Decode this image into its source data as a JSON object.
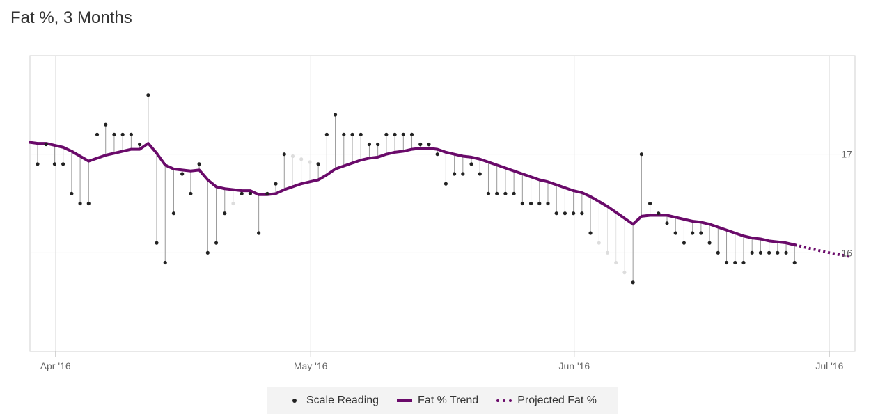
{
  "chart_data": {
    "type": "line",
    "title": "Fat %, 3 Months",
    "xlabel": "",
    "ylabel": "",
    "x_domain_days": [
      -3,
      94
    ],
    "ylim": [
      15.0,
      18.0
    ],
    "y_ticks": [
      16,
      17
    ],
    "x_ticks": [
      {
        "day": 0,
        "label": "Apr '16"
      },
      {
        "day": 30,
        "label": "May '16"
      },
      {
        "day": 61,
        "label": "Jun '16"
      },
      {
        "day": 91,
        "label": "Jul '16"
      }
    ],
    "legend": [
      "Scale Reading",
      "Fat % Trend",
      "Projected Fat %"
    ],
    "legend_position": "bottom-center",
    "colors": {
      "trend": "#6a0a6a",
      "dot": "#222222",
      "faded_dot": "#dddddd",
      "stem": "#999999",
      "faded_stem": "#e3e3e3",
      "grid": "#e6e6e6"
    },
    "readings": [
      {
        "day": -2.1,
        "value": 16.9
      },
      {
        "day": -1.1,
        "value": 17.1
      },
      {
        "day": -0.1,
        "value": 16.9
      },
      {
        "day": 0.9,
        "value": 16.9
      },
      {
        "day": 1.9,
        "value": 16.6
      },
      {
        "day": 2.9,
        "value": 16.5
      },
      {
        "day": 3.9,
        "value": 16.5
      },
      {
        "day": 4.9,
        "value": 17.2
      },
      {
        "day": 5.9,
        "value": 17.3
      },
      {
        "day": 6.9,
        "value": 17.2
      },
      {
        "day": 7.9,
        "value": 17.2
      },
      {
        "day": 8.9,
        "value": 17.2
      },
      {
        "day": 9.9,
        "value": 17.1
      },
      {
        "day": 10.9,
        "value": 17.6
      },
      {
        "day": 11.9,
        "value": 16.1
      },
      {
        "day": 12.9,
        "value": 15.9
      },
      {
        "day": 13.9,
        "value": 16.4
      },
      {
        "day": 14.9,
        "value": 16.8
      },
      {
        "day": 15.9,
        "value": 16.6
      },
      {
        "day": 16.9,
        "value": 16.9
      },
      {
        "day": 17.9,
        "value": 16.0
      },
      {
        "day": 18.9,
        "value": 16.1
      },
      {
        "day": 19.9,
        "value": 16.4
      },
      {
        "day": 20.9,
        "value": 16.5,
        "faded": true
      },
      {
        "day": 21.9,
        "value": 16.6
      },
      {
        "day": 22.9,
        "value": 16.6
      },
      {
        "day": 23.9,
        "value": 16.2
      },
      {
        "day": 24.9,
        "value": 16.6
      },
      {
        "day": 25.9,
        "value": 16.7
      },
      {
        "day": 26.9,
        "value": 17.0
      },
      {
        "day": 27.9,
        "value": 16.98,
        "faded": true
      },
      {
        "day": 28.9,
        "value": 16.95,
        "faded": true
      },
      {
        "day": 29.9,
        "value": 16.92,
        "faded": true
      },
      {
        "day": 30.9,
        "value": 16.9
      },
      {
        "day": 31.9,
        "value": 17.2
      },
      {
        "day": 32.9,
        "value": 17.4
      },
      {
        "day": 33.9,
        "value": 17.2
      },
      {
        "day": 34.9,
        "value": 17.2
      },
      {
        "day": 35.9,
        "value": 17.2
      },
      {
        "day": 36.9,
        "value": 17.1
      },
      {
        "day": 37.9,
        "value": 17.1
      },
      {
        "day": 38.9,
        "value": 17.2
      },
      {
        "day": 39.9,
        "value": 17.2
      },
      {
        "day": 40.9,
        "value": 17.2
      },
      {
        "day": 41.9,
        "value": 17.2
      },
      {
        "day": 42.9,
        "value": 17.1
      },
      {
        "day": 43.9,
        "value": 17.1
      },
      {
        "day": 44.9,
        "value": 17.0
      },
      {
        "day": 45.9,
        "value": 16.7
      },
      {
        "day": 46.9,
        "value": 16.8
      },
      {
        "day": 47.9,
        "value": 16.8
      },
      {
        "day": 48.9,
        "value": 16.9
      },
      {
        "day": 49.9,
        "value": 16.8
      },
      {
        "day": 50.9,
        "value": 16.6
      },
      {
        "day": 51.9,
        "value": 16.6
      },
      {
        "day": 52.9,
        "value": 16.6
      },
      {
        "day": 53.9,
        "value": 16.6
      },
      {
        "day": 54.9,
        "value": 16.5
      },
      {
        "day": 55.9,
        "value": 16.5
      },
      {
        "day": 56.9,
        "value": 16.5
      },
      {
        "day": 57.9,
        "value": 16.5
      },
      {
        "day": 58.9,
        "value": 16.4
      },
      {
        "day": 59.9,
        "value": 16.4
      },
      {
        "day": 60.9,
        "value": 16.4
      },
      {
        "day": 61.9,
        "value": 16.4
      },
      {
        "day": 62.9,
        "value": 16.2
      },
      {
        "day": 63.9,
        "value": 16.1,
        "faded": true
      },
      {
        "day": 64.9,
        "value": 16.0,
        "faded": true
      },
      {
        "day": 65.9,
        "value": 15.9,
        "faded": true
      },
      {
        "day": 66.9,
        "value": 15.8,
        "faded": true
      },
      {
        "day": 67.9,
        "value": 15.7
      },
      {
        "day": 68.9,
        "value": 17.0
      },
      {
        "day": 69.9,
        "value": 16.5
      },
      {
        "day": 70.9,
        "value": 16.4
      },
      {
        "day": 71.9,
        "value": 16.3
      },
      {
        "day": 72.9,
        "value": 16.2
      },
      {
        "day": 73.9,
        "value": 16.1
      },
      {
        "day": 74.9,
        "value": 16.2
      },
      {
        "day": 75.9,
        "value": 16.2
      },
      {
        "day": 76.9,
        "value": 16.1
      },
      {
        "day": 77.9,
        "value": 16.0
      },
      {
        "day": 78.9,
        "value": 15.9
      },
      {
        "day": 79.9,
        "value": 15.9
      },
      {
        "day": 80.9,
        "value": 15.9
      },
      {
        "day": 81.9,
        "value": 16.0
      },
      {
        "day": 82.9,
        "value": 16.0
      },
      {
        "day": 83.9,
        "value": 16.0
      },
      {
        "day": 84.9,
        "value": 16.0
      },
      {
        "day": 85.9,
        "value": 16.0
      },
      {
        "day": 86.9,
        "value": 15.9
      }
    ],
    "trend": [
      [
        -3.0,
        17.12
      ],
      [
        -2.1,
        17.11
      ],
      [
        -1.1,
        17.11
      ],
      [
        -0.1,
        17.09
      ],
      [
        0.9,
        17.07
      ],
      [
        1.9,
        17.03
      ],
      [
        2.9,
        16.98
      ],
      [
        3.9,
        16.93
      ],
      [
        4.9,
        16.96
      ],
      [
        5.9,
        16.99
      ],
      [
        6.9,
        17.01
      ],
      [
        7.9,
        17.03
      ],
      [
        8.9,
        17.05
      ],
      [
        9.9,
        17.05
      ],
      [
        10.9,
        17.11
      ],
      [
        11.9,
        17.01
      ],
      [
        12.9,
        16.89
      ],
      [
        13.9,
        16.85
      ],
      [
        14.9,
        16.84
      ],
      [
        15.9,
        16.83
      ],
      [
        16.9,
        16.84
      ],
      [
        17.9,
        16.74
      ],
      [
        18.9,
        16.67
      ],
      [
        19.9,
        16.65
      ],
      [
        20.9,
        16.64
      ],
      [
        21.9,
        16.63
      ],
      [
        22.9,
        16.63
      ],
      [
        23.9,
        16.59
      ],
      [
        24.9,
        16.59
      ],
      [
        25.9,
        16.6
      ],
      [
        26.9,
        16.64
      ],
      [
        27.9,
        16.67
      ],
      [
        28.9,
        16.7
      ],
      [
        29.9,
        16.72
      ],
      [
        30.9,
        16.74
      ],
      [
        31.9,
        16.79
      ],
      [
        32.9,
        16.85
      ],
      [
        33.9,
        16.88
      ],
      [
        34.9,
        16.91
      ],
      [
        35.9,
        16.94
      ],
      [
        36.9,
        16.96
      ],
      [
        37.9,
        16.97
      ],
      [
        38.9,
        17.0
      ],
      [
        39.9,
        17.02
      ],
      [
        40.9,
        17.03
      ],
      [
        41.9,
        17.05
      ],
      [
        42.9,
        17.06
      ],
      [
        43.9,
        17.06
      ],
      [
        44.9,
        17.05
      ],
      [
        45.9,
        17.02
      ],
      [
        46.9,
        17.0
      ],
      [
        47.9,
        16.98
      ],
      [
        48.9,
        16.97
      ],
      [
        49.9,
        16.95
      ],
      [
        50.9,
        16.92
      ],
      [
        51.9,
        16.89
      ],
      [
        52.9,
        16.86
      ],
      [
        53.9,
        16.83
      ],
      [
        54.9,
        16.8
      ],
      [
        55.9,
        16.77
      ],
      [
        56.9,
        16.74
      ],
      [
        57.9,
        16.72
      ],
      [
        58.9,
        16.69
      ],
      [
        59.9,
        16.66
      ],
      [
        60.9,
        16.63
      ],
      [
        61.9,
        16.61
      ],
      [
        62.9,
        16.57
      ],
      [
        63.9,
        16.52
      ],
      [
        64.9,
        16.47
      ],
      [
        65.9,
        16.41
      ],
      [
        66.9,
        16.35
      ],
      [
        67.9,
        16.29
      ],
      [
        68.9,
        16.37
      ],
      [
        69.9,
        16.38
      ],
      [
        70.9,
        16.38
      ],
      [
        71.9,
        16.38
      ],
      [
        72.9,
        16.36
      ],
      [
        73.9,
        16.34
      ],
      [
        74.9,
        16.32
      ],
      [
        75.9,
        16.31
      ],
      [
        76.9,
        16.29
      ],
      [
        77.9,
        16.26
      ],
      [
        78.9,
        16.23
      ],
      [
        79.9,
        16.2
      ],
      [
        80.9,
        16.17
      ],
      [
        81.9,
        16.15
      ],
      [
        82.9,
        16.14
      ],
      [
        83.9,
        16.12
      ],
      [
        84.9,
        16.11
      ],
      [
        85.9,
        16.1
      ],
      [
        86.9,
        16.08
      ]
    ],
    "projected": [
      [
        86.9,
        16.08
      ],
      [
        88.9,
        16.04
      ],
      [
        91.0,
        16.0
      ],
      [
        93.5,
        15.96
      ]
    ]
  }
}
